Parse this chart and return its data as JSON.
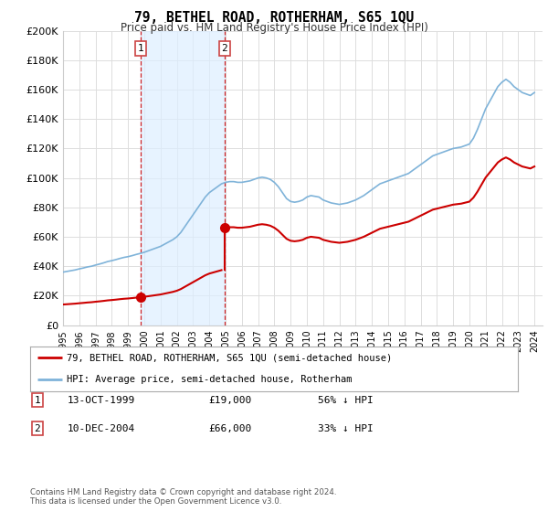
{
  "title": "79, BETHEL ROAD, ROTHERHAM, S65 1QU",
  "subtitle": "Price paid vs. HM Land Registry's House Price Index (HPI)",
  "hpi_label": "HPI: Average price, semi-detached house, Rotherham",
  "property_label": "79, BETHEL ROAD, ROTHERHAM, S65 1QU (semi-detached house)",
  "footnote1": "Contains HM Land Registry data © Crown copyright and database right 2024.",
  "footnote2": "This data is licensed under the Open Government Licence v3.0.",
  "hpi_color": "#7fb3d9",
  "hpi_fill_color": "#ddeeff",
  "property_color": "#cc0000",
  "dashed_color": "#cc0000",
  "background_color": "#ffffff",
  "grid_color": "#dddddd",
  "ylim": [
    0,
    200000
  ],
  "yticks": [
    0,
    20000,
    40000,
    60000,
    80000,
    100000,
    120000,
    140000,
    160000,
    180000,
    200000
  ],
  "ytick_labels": [
    "£0",
    "£20K",
    "£40K",
    "£60K",
    "£80K",
    "£100K",
    "£120K",
    "£140K",
    "£160K",
    "£180K",
    "£200K"
  ],
  "transactions": [
    {
      "num": 1,
      "date": "13-OCT-1999",
      "price": 19000,
      "pct": "56%",
      "dir": "↓",
      "year": 1999.79
    },
    {
      "num": 2,
      "date": "10-DEC-2004",
      "price": 66000,
      "pct": "33%",
      "dir": "↓",
      "year": 2004.94
    }
  ],
  "hpi_years": [
    1995.0,
    1995.25,
    1995.5,
    1995.75,
    1996.0,
    1996.25,
    1996.5,
    1996.75,
    1997.0,
    1997.25,
    1997.5,
    1997.75,
    1998.0,
    1998.25,
    1998.5,
    1998.75,
    1999.0,
    1999.25,
    1999.5,
    1999.75,
    2000.0,
    2000.25,
    2000.5,
    2000.75,
    2001.0,
    2001.25,
    2001.5,
    2001.75,
    2002.0,
    2002.25,
    2002.5,
    2002.75,
    2003.0,
    2003.25,
    2003.5,
    2003.75,
    2004.0,
    2004.25,
    2004.5,
    2004.75,
    2005.0,
    2005.25,
    2005.5,
    2005.75,
    2006.0,
    2006.25,
    2006.5,
    2006.75,
    2007.0,
    2007.25,
    2007.5,
    2007.75,
    2008.0,
    2008.25,
    2008.5,
    2008.75,
    2009.0,
    2009.25,
    2009.5,
    2009.75,
    2010.0,
    2010.25,
    2010.5,
    2010.75,
    2011.0,
    2011.25,
    2011.5,
    2011.75,
    2012.0,
    2012.25,
    2012.5,
    2012.75,
    2013.0,
    2013.25,
    2013.5,
    2013.75,
    2014.0,
    2014.25,
    2014.5,
    2014.75,
    2015.0,
    2015.25,
    2015.5,
    2015.75,
    2016.0,
    2016.25,
    2016.5,
    2016.75,
    2017.0,
    2017.25,
    2017.5,
    2017.75,
    2018.0,
    2018.25,
    2018.5,
    2018.75,
    2019.0,
    2019.25,
    2019.5,
    2019.75,
    2020.0,
    2020.25,
    2020.5,
    2020.75,
    2021.0,
    2021.25,
    2021.5,
    2021.75,
    2022.0,
    2022.25,
    2022.5,
    2022.75,
    2023.0,
    2023.25,
    2023.5,
    2023.75,
    2024.0
  ],
  "hpi_values": [
    36000,
    36500,
    37000,
    37500,
    38200,
    38800,
    39500,
    40000,
    40800,
    41500,
    42300,
    43200,
    43800,
    44500,
    45300,
    46000,
    46500,
    47200,
    48000,
    48700,
    49500,
    50500,
    51500,
    52500,
    53500,
    55000,
    56500,
    58000,
    60000,
    63000,
    67000,
    71000,
    75000,
    79000,
    83000,
    87000,
    90000,
    92000,
    94000,
    96000,
    97000,
    97500,
    97500,
    97000,
    97000,
    97500,
    98000,
    99000,
    100000,
    100500,
    100000,
    99000,
    97000,
    94000,
    90000,
    86000,
    84000,
    83500,
    84000,
    85000,
    87000,
    88000,
    87500,
    87000,
    85000,
    84000,
    83000,
    82500,
    82000,
    82500,
    83000,
    84000,
    85000,
    86500,
    88000,
    90000,
    92000,
    94000,
    96000,
    97000,
    98000,
    99000,
    100000,
    101000,
    102000,
    103000,
    105000,
    107000,
    109000,
    111000,
    113000,
    115000,
    116000,
    117000,
    118000,
    119000,
    120000,
    120500,
    121000,
    122000,
    123000,
    127000,
    133000,
    140000,
    147000,
    152000,
    157000,
    162000,
    165000,
    167000,
    165000,
    162000,
    160000,
    158000,
    157000,
    156000,
    158000
  ],
  "xlim": [
    1995,
    2024.5
  ],
  "xtick_years": [
    1995,
    1996,
    1997,
    1998,
    1999,
    2000,
    2001,
    2002,
    2003,
    2004,
    2005,
    2006,
    2007,
    2008,
    2009,
    2010,
    2011,
    2012,
    2013,
    2014,
    2015,
    2016,
    2017,
    2018,
    2019,
    2020,
    2021,
    2022,
    2023,
    2024
  ]
}
